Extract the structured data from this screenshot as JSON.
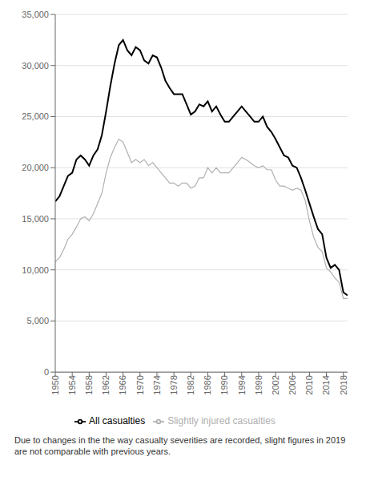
{
  "chart_data": {
    "type": "line",
    "x": [
      1950,
      1951,
      1952,
      1953,
      1954,
      1955,
      1956,
      1957,
      1958,
      1959,
      1960,
      1961,
      1962,
      1963,
      1964,
      1965,
      1966,
      1967,
      1968,
      1969,
      1970,
      1971,
      1972,
      1973,
      1974,
      1975,
      1976,
      1977,
      1978,
      1979,
      1980,
      1981,
      1982,
      1983,
      1984,
      1985,
      1986,
      1987,
      1988,
      1989,
      1990,
      1991,
      1992,
      1993,
      1994,
      1995,
      1996,
      1997,
      1998,
      1999,
      2000,
      2001,
      2002,
      2003,
      2004,
      2005,
      2006,
      2007,
      2008,
      2009,
      2010,
      2011,
      2012,
      2013,
      2014,
      2015,
      2016,
      2017,
      2018,
      2019
    ],
    "series": [
      {
        "name": "All casualties",
        "color": "#000000",
        "values": [
          16700,
          17200,
          18200,
          19200,
          19500,
          20800,
          21200,
          20800,
          20200,
          21200,
          21800,
          23200,
          25500,
          28000,
          30200,
          32000,
          32500,
          31500,
          31000,
          31800,
          31500,
          30500,
          30200,
          31000,
          30800,
          29800,
          28500,
          27800,
          27200,
          27200,
          27200,
          26200,
          25200,
          25500,
          26200,
          26000,
          26500,
          25500,
          26000,
          25200,
          24500,
          24500,
          25000,
          25500,
          26000,
          25500,
          25000,
          24500,
          24500,
          25000,
          24000,
          23500,
          22800,
          22000,
          21200,
          21000,
          20200,
          20000,
          19000,
          17800,
          16500,
          15200,
          14000,
          13500,
          11200,
          10200,
          10500,
          10000,
          7800,
          7500
        ]
      },
      {
        "name": "Slightly injured casualties",
        "color": "#b0b0b0",
        "values": [
          10800,
          11200,
          12000,
          13000,
          13500,
          14200,
          15000,
          15200,
          14800,
          15500,
          16500,
          17500,
          19500,
          21000,
          22000,
          22800,
          22500,
          21500,
          20500,
          20800,
          20500,
          20800,
          20200,
          20500,
          20000,
          19500,
          19000,
          18500,
          18500,
          18200,
          18500,
          18500,
          18000,
          18200,
          19000,
          19000,
          20000,
          19500,
          20000,
          19500,
          19500,
          19500,
          20000,
          20500,
          21000,
          20800,
          20500,
          20200,
          20000,
          20200,
          19800,
          19800,
          18800,
          18200,
          18200,
          18000,
          17800,
          18000,
          17800,
          16800,
          14800,
          13200,
          12200,
          11800,
          10200,
          9800,
          9200,
          8800,
          7200,
          7200
        ]
      }
    ],
    "xlim": [
      1950,
      2019
    ],
    "xticks": [
      1950,
      1954,
      1958,
      1962,
      1966,
      1970,
      1974,
      1978,
      1982,
      1986,
      1990,
      1994,
      1998,
      2002,
      2006,
      2010,
      2014,
      2018
    ],
    "ylim": [
      0,
      35000
    ],
    "yticks": [
      0,
      {
        "value": 5000,
        "label": "5,000"
      },
      {
        "value": 10000,
        "label": "10,000"
      },
      {
        "value": 15000,
        "label": "15,000"
      },
      {
        "value": 20000,
        "label": "20,000"
      },
      {
        "value": 25000,
        "label": "25,000"
      },
      {
        "value": 30000,
        "label": "30,000"
      },
      {
        "value": 35000,
        "label": "35,000"
      }
    ],
    "grid": "y",
    "legend": "bottom",
    "annotations": [
      "Due to changes in the the way casualty severities are recorded, slight figures in 2019 are not comparable with previous years."
    ]
  }
}
